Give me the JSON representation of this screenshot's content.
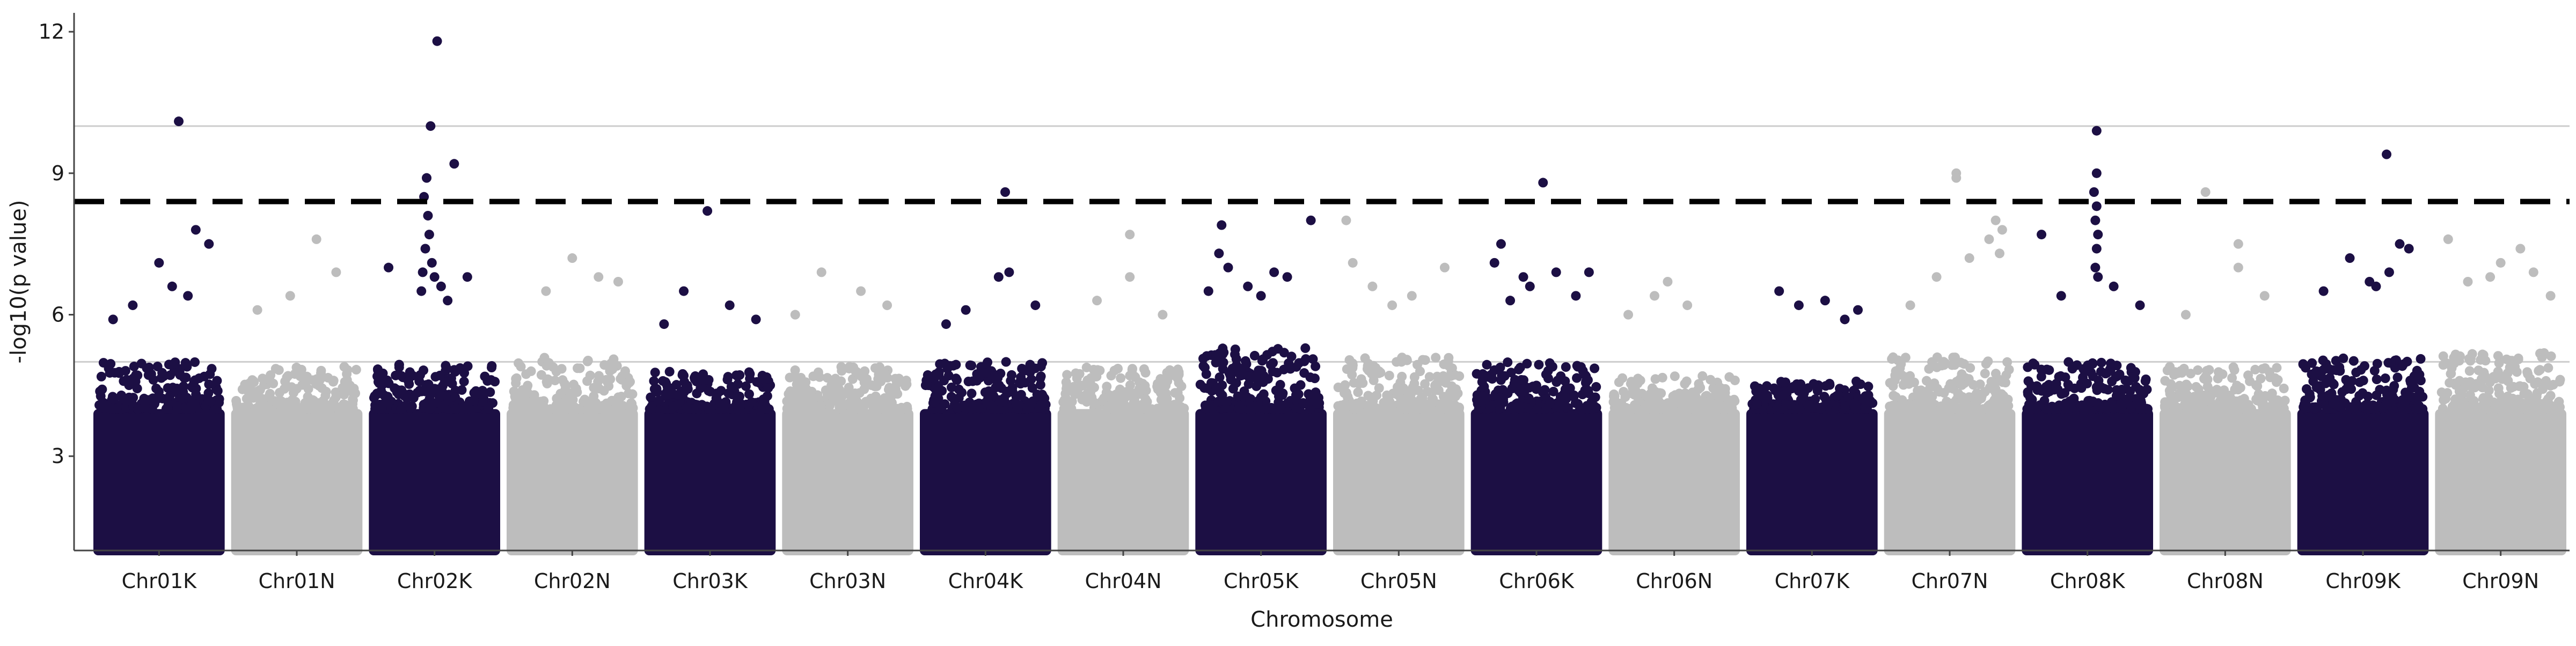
{
  "chart_data": {
    "type": "scatter",
    "title": "",
    "xlabel": "Chromosome",
    "ylabel": "-log10(p value)",
    "ylim": [
      1,
      12.4
    ],
    "y_ticks": [
      3,
      6,
      9,
      12
    ],
    "grid": "horizontal gridlines at 5 and 10 only",
    "legend": "none",
    "threshold_line": {
      "y": 8.4,
      "style": "dashed",
      "color": "#000000"
    },
    "reference_lines": [
      5,
      10
    ],
    "colors": {
      "odd": "#1c0f44",
      "even": "#bdbdbd",
      "axis": "#444444",
      "gridline": "#cccccc"
    },
    "categories": [
      "Chr01K",
      "Chr01N",
      "Chr02K",
      "Chr02N",
      "Chr03K",
      "Chr03N",
      "Chr04K",
      "Chr04N",
      "Chr05K",
      "Chr05N",
      "Chr06K",
      "Chr06N",
      "Chr07K",
      "Chr07N",
      "Chr08K",
      "Chr08N",
      "Chr09K",
      "Chr09N"
    ],
    "series": [
      {
        "chromosome": "Chr01K",
        "color": "#1c0f44",
        "dense_max": 5.0,
        "peaks": [
          {
            "x": 0.65,
            "y": 10.1
          },
          {
            "x": 0.78,
            "y": 7.8
          },
          {
            "x": 0.88,
            "y": 7.5
          },
          {
            "x": 0.5,
            "y": 7.1
          },
          {
            "x": 0.6,
            "y": 6.6
          },
          {
            "x": 0.72,
            "y": 6.4
          },
          {
            "x": 0.3,
            "y": 6.2
          },
          {
            "x": 0.15,
            "y": 5.9
          }
        ]
      },
      {
        "chromosome": "Chr01N",
        "color": "#bdbdbd",
        "dense_max": 4.9,
        "peaks": [
          {
            "x": 0.65,
            "y": 7.6
          },
          {
            "x": 0.8,
            "y": 6.9
          },
          {
            "x": 0.45,
            "y": 6.4
          },
          {
            "x": 0.2,
            "y": 6.1
          }
        ]
      },
      {
        "chromosome": "Chr02K",
        "color": "#1c0f44",
        "dense_max": 5.0,
        "peaks": [
          {
            "x": 0.52,
            "y": 11.8
          },
          {
            "x": 0.47,
            "y": 10.0
          },
          {
            "x": 0.65,
            "y": 9.2
          },
          {
            "x": 0.44,
            "y": 8.9
          },
          {
            "x": 0.42,
            "y": 8.5
          },
          {
            "x": 0.45,
            "y": 8.1
          },
          {
            "x": 0.46,
            "y": 7.7
          },
          {
            "x": 0.43,
            "y": 7.4
          },
          {
            "x": 0.48,
            "y": 7.1
          },
          {
            "x": 0.41,
            "y": 6.9
          },
          {
            "x": 0.5,
            "y": 6.8
          },
          {
            "x": 0.15,
            "y": 7.0
          },
          {
            "x": 0.75,
            "y": 6.8
          },
          {
            "x": 0.55,
            "y": 6.6
          },
          {
            "x": 0.4,
            "y": 6.5
          },
          {
            "x": 0.6,
            "y": 6.3
          }
        ]
      },
      {
        "chromosome": "Chr02N",
        "color": "#bdbdbd",
        "dense_max": 5.1,
        "peaks": [
          {
            "x": 0.5,
            "y": 7.2
          },
          {
            "x": 0.7,
            "y": 6.8
          },
          {
            "x": 0.3,
            "y": 6.5
          },
          {
            "x": 0.85,
            "y": 6.7
          }
        ]
      },
      {
        "chromosome": "Chr03K",
        "color": "#1c0f44",
        "dense_max": 4.8,
        "peaks": [
          {
            "x": 0.48,
            "y": 8.2
          },
          {
            "x": 0.3,
            "y": 6.5
          },
          {
            "x": 0.65,
            "y": 6.2
          },
          {
            "x": 0.85,
            "y": 5.9
          },
          {
            "x": 0.15,
            "y": 5.8
          }
        ]
      },
      {
        "chromosome": "Chr03N",
        "color": "#bdbdbd",
        "dense_max": 4.9,
        "peaks": [
          {
            "x": 0.3,
            "y": 6.9
          },
          {
            "x": 0.6,
            "y": 6.5
          },
          {
            "x": 0.8,
            "y": 6.2
          },
          {
            "x": 0.1,
            "y": 6.0
          }
        ]
      },
      {
        "chromosome": "Chr04K",
        "color": "#1c0f44",
        "dense_max": 5.0,
        "peaks": [
          {
            "x": 0.65,
            "y": 8.6
          },
          {
            "x": 0.68,
            "y": 6.9
          },
          {
            "x": 0.6,
            "y": 6.8
          },
          {
            "x": 0.88,
            "y": 6.2
          },
          {
            "x": 0.35,
            "y": 6.1
          },
          {
            "x": 0.2,
            "y": 5.8
          }
        ]
      },
      {
        "chromosome": "Chr04N",
        "color": "#bdbdbd",
        "dense_max": 4.9,
        "peaks": [
          {
            "x": 0.55,
            "y": 7.7
          },
          {
            "x": 0.55,
            "y": 6.8
          },
          {
            "x": 0.3,
            "y": 6.3
          },
          {
            "x": 0.8,
            "y": 6.0
          }
        ]
      },
      {
        "chromosome": "Chr05K",
        "color": "#1c0f44",
        "dense_max": 5.3,
        "peaks": [
          {
            "x": 0.2,
            "y": 7.9
          },
          {
            "x": 0.88,
            "y": 8.0
          },
          {
            "x": 0.18,
            "y": 7.3
          },
          {
            "x": 0.25,
            "y": 7.0
          },
          {
            "x": 0.6,
            "y": 6.9
          },
          {
            "x": 0.7,
            "y": 6.8
          },
          {
            "x": 0.4,
            "y": 6.6
          },
          {
            "x": 0.1,
            "y": 6.5
          },
          {
            "x": 0.5,
            "y": 6.4
          }
        ]
      },
      {
        "chromosome": "Chr05N",
        "color": "#bdbdbd",
        "dense_max": 5.1,
        "peaks": [
          {
            "x": 0.1,
            "y": 8.0
          },
          {
            "x": 0.15,
            "y": 7.1
          },
          {
            "x": 0.3,
            "y": 6.6
          },
          {
            "x": 0.85,
            "y": 7.0
          },
          {
            "x": 0.6,
            "y": 6.4
          },
          {
            "x": 0.45,
            "y": 6.2
          }
        ]
      },
      {
        "chromosome": "Chr06K",
        "color": "#1c0f44",
        "dense_max": 5.0,
        "peaks": [
          {
            "x": 0.55,
            "y": 8.8
          },
          {
            "x": 0.23,
            "y": 7.5
          },
          {
            "x": 0.18,
            "y": 7.1
          },
          {
            "x": 0.4,
            "y": 6.8
          },
          {
            "x": 0.45,
            "y": 6.6
          },
          {
            "x": 0.65,
            "y": 6.9
          },
          {
            "x": 0.9,
            "y": 6.9
          },
          {
            "x": 0.8,
            "y": 6.4
          },
          {
            "x": 0.3,
            "y": 6.3
          }
        ]
      },
      {
        "chromosome": "Chr06N",
        "color": "#bdbdbd",
        "dense_max": 4.7,
        "peaks": [
          {
            "x": 0.45,
            "y": 6.7
          },
          {
            "x": 0.35,
            "y": 6.4
          },
          {
            "x": 0.6,
            "y": 6.2
          },
          {
            "x": 0.15,
            "y": 6.0
          }
        ]
      },
      {
        "chromosome": "Chr07K",
        "color": "#1c0f44",
        "dense_max": 4.6,
        "peaks": [
          {
            "x": 0.25,
            "y": 6.5
          },
          {
            "x": 0.4,
            "y": 6.2
          },
          {
            "x": 0.6,
            "y": 6.3
          },
          {
            "x": 0.85,
            "y": 6.1
          },
          {
            "x": 0.75,
            "y": 5.9
          }
        ]
      },
      {
        "chromosome": "Chr07N",
        "color": "#bdbdbd",
        "dense_max": 5.1,
        "peaks": [
          {
            "x": 0.55,
            "y": 9.0
          },
          {
            "x": 0.55,
            "y": 8.9
          },
          {
            "x": 0.85,
            "y": 8.0
          },
          {
            "x": 0.9,
            "y": 7.8
          },
          {
            "x": 0.8,
            "y": 7.6
          },
          {
            "x": 0.65,
            "y": 7.2
          },
          {
            "x": 0.4,
            "y": 6.8
          },
          {
            "x": 0.2,
            "y": 6.2
          },
          {
            "x": 0.88,
            "y": 7.3
          }
        ]
      },
      {
        "chromosome": "Chr08K",
        "color": "#1c0f44",
        "dense_max": 5.0,
        "peaks": [
          {
            "x": 0.57,
            "y": 9.9
          },
          {
            "x": 0.57,
            "y": 9.0
          },
          {
            "x": 0.55,
            "y": 8.6
          },
          {
            "x": 0.57,
            "y": 8.3
          },
          {
            "x": 0.56,
            "y": 8.0
          },
          {
            "x": 0.58,
            "y": 7.7
          },
          {
            "x": 0.57,
            "y": 7.4
          },
          {
            "x": 0.15,
            "y": 7.7
          },
          {
            "x": 0.56,
            "y": 7.0
          },
          {
            "x": 0.58,
            "y": 6.8
          },
          {
            "x": 0.3,
            "y": 6.4
          },
          {
            "x": 0.7,
            "y": 6.6
          },
          {
            "x": 0.9,
            "y": 6.2
          }
        ]
      },
      {
        "chromosome": "Chr08N",
        "color": "#bdbdbd",
        "dense_max": 4.9,
        "peaks": [
          {
            "x": 0.35,
            "y": 8.6
          },
          {
            "x": 0.6,
            "y": 7.5
          },
          {
            "x": 0.6,
            "y": 7.0
          },
          {
            "x": 0.8,
            "y": 6.4
          },
          {
            "x": 0.2,
            "y": 6.0
          }
        ]
      },
      {
        "chromosome": "Chr09K",
        "color": "#1c0f44",
        "dense_max": 5.1,
        "peaks": [
          {
            "x": 0.68,
            "y": 9.4
          },
          {
            "x": 0.4,
            "y": 7.2
          },
          {
            "x": 0.78,
            "y": 7.5
          },
          {
            "x": 0.85,
            "y": 7.4
          },
          {
            "x": 0.7,
            "y": 6.9
          },
          {
            "x": 0.55,
            "y": 6.7
          },
          {
            "x": 0.2,
            "y": 6.5
          },
          {
            "x": 0.6,
            "y": 6.6
          }
        ]
      },
      {
        "chromosome": "Chr09N",
        "color": "#bdbdbd",
        "dense_max": 5.2,
        "peaks": [
          {
            "x": 0.1,
            "y": 7.6
          },
          {
            "x": 0.5,
            "y": 7.1
          },
          {
            "x": 0.42,
            "y": 6.8
          },
          {
            "x": 0.65,
            "y": 7.4
          },
          {
            "x": 0.25,
            "y": 6.7
          },
          {
            "x": 0.75,
            "y": 6.9
          },
          {
            "x": 0.88,
            "y": 6.4
          }
        ]
      }
    ]
  }
}
